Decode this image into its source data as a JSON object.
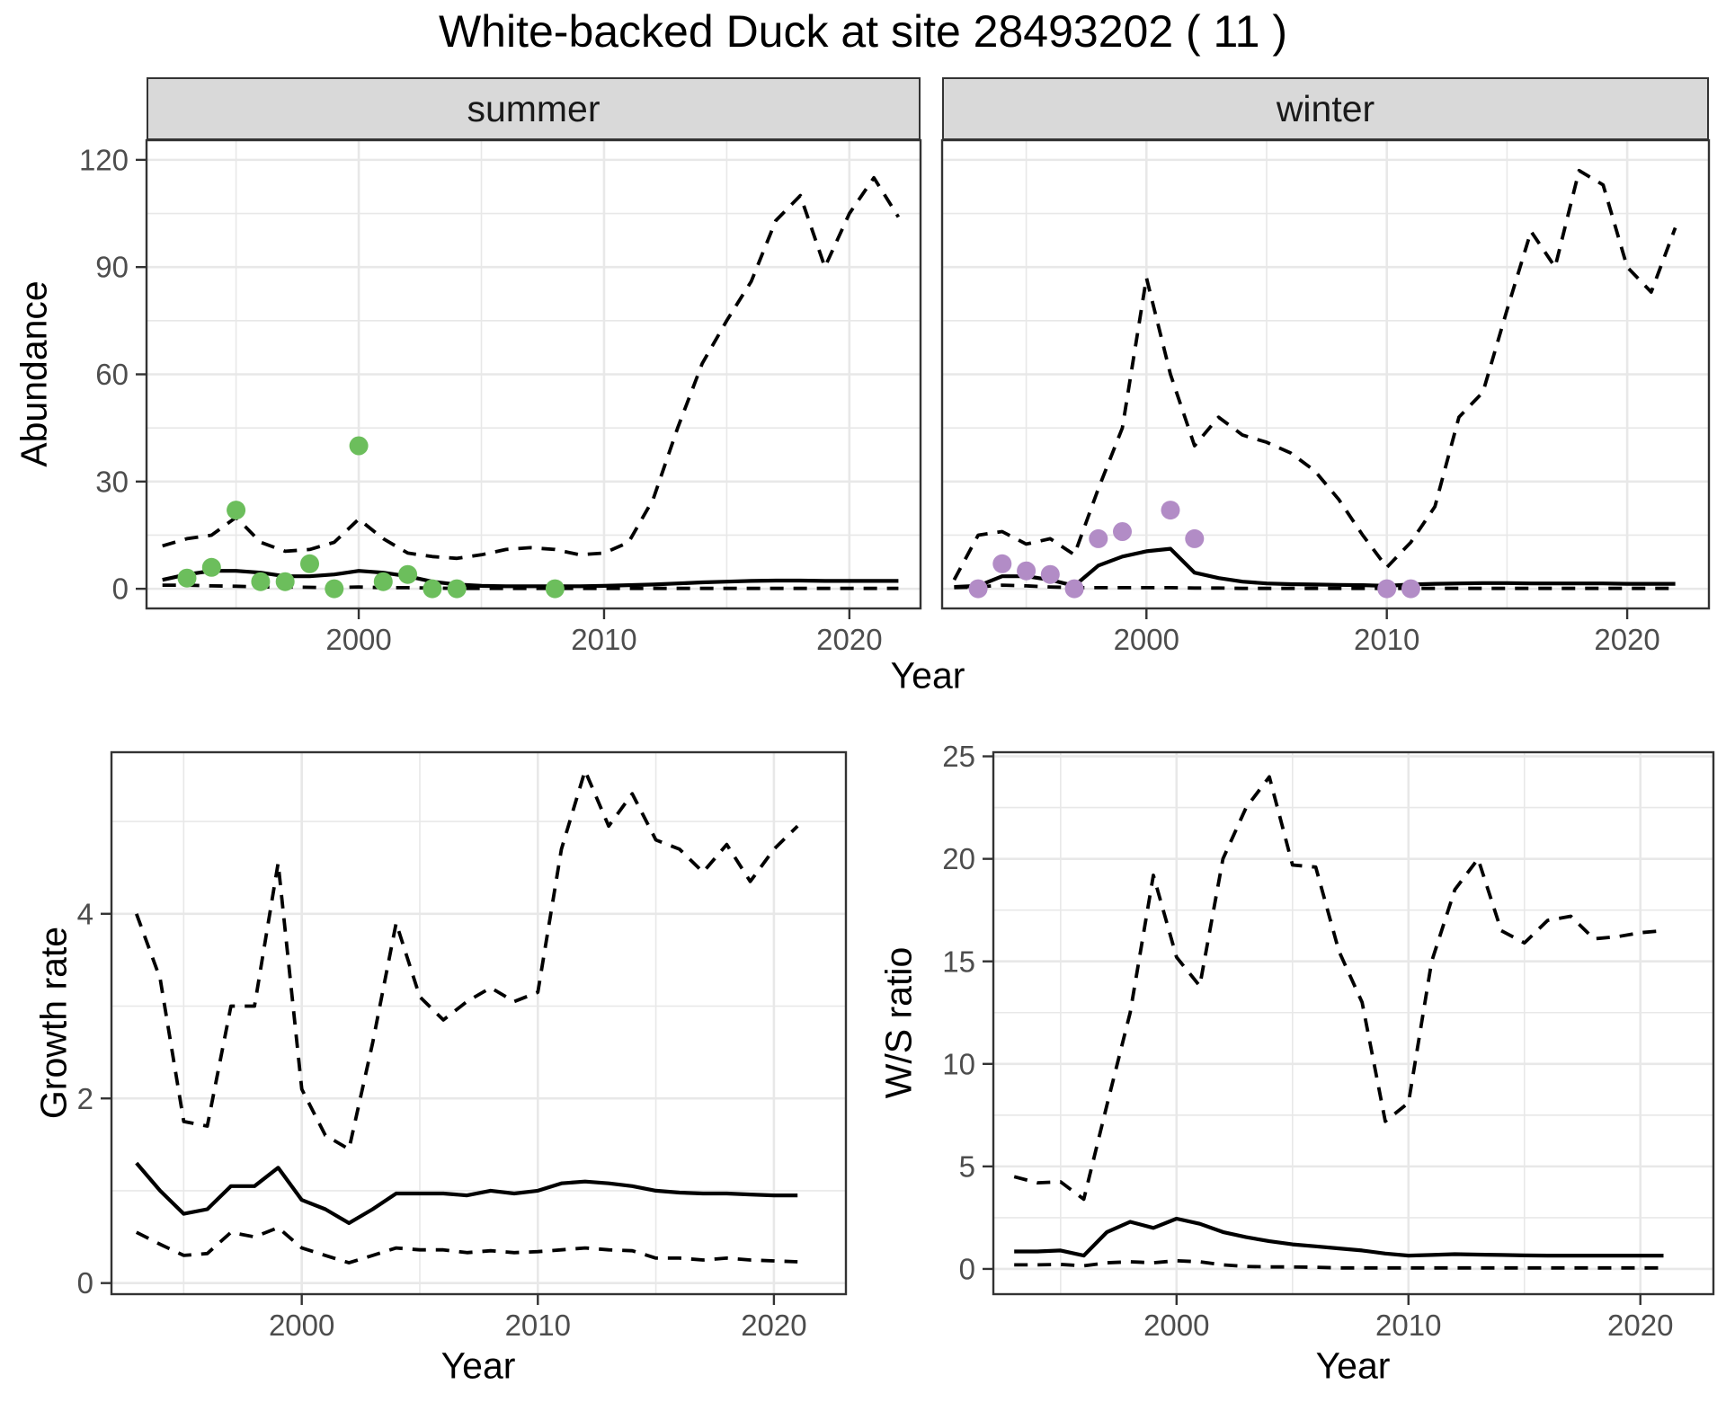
{
  "title": "White-backed Duck at site 28493202 ( 11 )",
  "facets": [
    {
      "label": "summer"
    },
    {
      "label": "winter"
    }
  ],
  "labels": {
    "abundance": "Abundance",
    "growth_rate": "Growth rate",
    "ws_ratio": "W/S ratio",
    "year": "Year"
  },
  "colors": {
    "point_summer": "#6cbe5c",
    "point_winter": "#b28cc6",
    "line": "#000000",
    "grid": "#e8e8e8",
    "panel_border": "#333333",
    "tick_text": "#4d4d4d",
    "strip_bg": "#d9d9d9"
  },
  "chart_data": [
    {
      "id": "abundance-summer",
      "type": "line",
      "facet": "summer",
      "title": "",
      "xlabel": "Year",
      "ylabel": "Abundance",
      "xlim": [
        1991.35,
        2022.9
      ],
      "ylim": [
        -5.5,
        125.5
      ],
      "x_major": [
        2000,
        2010,
        2020
      ],
      "x_minor": [
        1995,
        2005,
        2015
      ],
      "y_major": [
        0,
        30,
        60,
        90,
        120
      ],
      "y_minor": [
        15,
        45,
        75,
        105
      ],
      "grid": true,
      "axes": {
        "left": true,
        "bottom": true
      },
      "x": [
        1992,
        1993,
        1994,
        1995,
        1996,
        1997,
        1998,
        1999,
        2000,
        2001,
        2002,
        2003,
        2004,
        2005,
        2006,
        2007,
        2008,
        2009,
        2010,
        2011,
        2012,
        2013,
        2014,
        2015,
        2016,
        2017,
        2018,
        2019,
        2020,
        2021,
        2022
      ],
      "series": [
        {
          "name": "median",
          "style": "solid",
          "values": [
            2.5,
            4,
            5,
            5,
            4.5,
            3.5,
            3.5,
            4,
            5,
            4.5,
            3.5,
            2,
            1.2,
            0.8,
            0.7,
            0.7,
            0.7,
            0.7,
            0.8,
            1,
            1.2,
            1.5,
            1.8,
            2,
            2.2,
            2.3,
            2.3,
            2.2,
            2.2,
            2.2,
            2.2
          ]
        },
        {
          "name": "upper_ci",
          "style": "dashed",
          "values": [
            12,
            14,
            15,
            20,
            13,
            10.5,
            11,
            13,
            19.5,
            14,
            10,
            9,
            8.5,
            9.5,
            11,
            11.5,
            11,
            9.5,
            10,
            13,
            25,
            45,
            63,
            75,
            86,
            103,
            110,
            90,
            105,
            115,
            104
          ]
        },
        {
          "name": "lower_ci",
          "style": "dashed",
          "values": [
            1,
            1,
            0.8,
            0.7,
            0.5,
            0.5,
            0.4,
            0.3,
            0.5,
            0.3,
            0.3,
            0.2,
            0.1,
            0.1,
            0.1,
            0.1,
            0.1,
            0.1,
            0.1,
            0.1,
            0.1,
            0.1,
            0.1,
            0.1,
            0.1,
            0.1,
            0.1,
            0.1,
            0.1,
            0.1,
            0.1
          ]
        }
      ],
      "points": {
        "label": "observed-counts-summer",
        "x": [
          1993,
          1994,
          1995,
          1996,
          1997,
          1998,
          1999,
          2000,
          2001,
          2002,
          2003,
          2004,
          2008
        ],
        "y": [
          3,
          6,
          22,
          2,
          2,
          7,
          0,
          40,
          2,
          4,
          0,
          0,
          0
        ],
        "color": "#6cbe5c"
      }
    },
    {
      "id": "abundance-winter",
      "type": "line",
      "facet": "winter",
      "title": "",
      "xlabel": "Year",
      "ylabel": "Abundance",
      "xlim": [
        1991.5,
        2023.4
      ],
      "ylim": [
        -5.5,
        125.5
      ],
      "x_major": [
        2000,
        2010,
        2020
      ],
      "x_minor": [
        1995,
        2005,
        2015
      ],
      "y_major": [
        0,
        30,
        60,
        90,
        120
      ],
      "y_minor": [
        15,
        45,
        75,
        105
      ],
      "grid": true,
      "axes": {
        "left": false,
        "bottom": true
      },
      "x": [
        1992,
        1993,
        1994,
        1995,
        1996,
        1997,
        1998,
        1999,
        2000,
        2001,
        2002,
        2003,
        2004,
        2005,
        2006,
        2007,
        2008,
        2009,
        2010,
        2011,
        2012,
        2013,
        2014,
        2015,
        2016,
        2017,
        2018,
        2019,
        2020,
        2021,
        2022
      ],
      "series": [
        {
          "name": "median",
          "style": "solid",
          "values": [
            0.5,
            0.8,
            3.5,
            3.5,
            2.5,
            0.8,
            6.5,
            9,
            10.5,
            11.2,
            4.5,
            3,
            2,
            1.5,
            1.3,
            1.2,
            1.1,
            1,
            0.8,
            1.2,
            1.4,
            1.5,
            1.6,
            1.6,
            1.5,
            1.5,
            1.5,
            1.5,
            1.4,
            1.4,
            1.4
          ]
        },
        {
          "name": "upper_ci",
          "style": "dashed",
          "values": [
            2.5,
            15,
            16,
            12.5,
            14,
            9.5,
            28,
            45,
            87,
            60,
            40,
            48,
            43,
            41,
            38,
            33,
            25,
            15,
            6,
            13,
            23,
            48,
            55,
            78,
            100,
            90,
            117,
            113,
            90,
            83,
            101
          ]
        },
        {
          "name": "lower_ci",
          "style": "dashed",
          "values": [
            0.3,
            0.5,
            1,
            0.8,
            0.5,
            0.3,
            0.3,
            0.3,
            0.3,
            0.3,
            0.2,
            0.2,
            0.1,
            0.1,
            0.1,
            0.1,
            0.1,
            0.1,
            0.1,
            0.1,
            0.1,
            0.1,
            0.1,
            0.1,
            0.1,
            0.1,
            0.1,
            0.1,
            0.1,
            0.1,
            0.1
          ]
        }
      ],
      "points": {
        "label": "observed-counts-winter",
        "x": [
          1993,
          1994,
          1995,
          1996,
          1997,
          1998,
          1999,
          2001,
          2002,
          2010,
          2011
        ],
        "y": [
          0,
          7,
          5,
          4,
          0,
          14,
          16,
          22,
          14,
          0,
          0
        ],
        "color": "#b28cc6"
      }
    },
    {
      "id": "growth-rate",
      "type": "line",
      "facet": "",
      "title": "",
      "xlabel": "Year",
      "ylabel": "Growth rate",
      "xlim": [
        1991.94,
        2023.05
      ],
      "ylim": [
        -0.12,
        5.75
      ],
      "x_major": [
        2000,
        2010,
        2020
      ],
      "x_minor": [
        1995,
        2005,
        2015
      ],
      "y_major": [
        0,
        2,
        4
      ],
      "y_minor": [
        1,
        3,
        5
      ],
      "grid": true,
      "axes": {
        "left": true,
        "bottom": true
      },
      "x": [
        1993,
        1994,
        1995,
        1996,
        1997,
        1998,
        1999,
        2000,
        2001,
        2002,
        2003,
        2004,
        2005,
        2006,
        2007,
        2008,
        2009,
        2010,
        2011,
        2012,
        2013,
        2014,
        2015,
        2016,
        2017,
        2018,
        2019,
        2020,
        2021
      ],
      "series": [
        {
          "name": "median",
          "style": "solid",
          "values": [
            1.3,
            1.0,
            0.75,
            0.8,
            1.05,
            1.05,
            1.25,
            0.9,
            0.8,
            0.65,
            0.8,
            0.97,
            0.97,
            0.97,
            0.95,
            1.0,
            0.97,
            1.0,
            1.08,
            1.1,
            1.08,
            1.05,
            1.0,
            0.98,
            0.97,
            0.97,
            0.96,
            0.95,
            0.95
          ]
        },
        {
          "name": "upper_ci",
          "style": "dashed",
          "values": [
            4.0,
            3.3,
            1.75,
            1.7,
            3.0,
            3.0,
            4.55,
            2.1,
            1.6,
            1.45,
            2.6,
            3.9,
            3.1,
            2.85,
            3.05,
            3.2,
            3.05,
            3.15,
            4.7,
            5.55,
            4.95,
            5.3,
            4.8,
            4.7,
            4.45,
            4.75,
            4.35,
            4.7,
            4.95
          ]
        },
        {
          "name": "lower_ci",
          "style": "dashed",
          "values": [
            0.55,
            0.42,
            0.3,
            0.32,
            0.55,
            0.5,
            0.6,
            0.38,
            0.3,
            0.22,
            0.3,
            0.38,
            0.36,
            0.36,
            0.33,
            0.35,
            0.33,
            0.34,
            0.36,
            0.38,
            0.36,
            0.35,
            0.27,
            0.27,
            0.25,
            0.27,
            0.25,
            0.24,
            0.23
          ]
        }
      ],
      "points": null
    },
    {
      "id": "ws-ratio",
      "type": "line",
      "facet": "",
      "title": "",
      "xlabel": "Year",
      "ylabel": "W/S ratio",
      "xlim": [
        1992.1,
        2023.15
      ],
      "ylim": [
        -1.23,
        25.2
      ],
      "x_major": [
        2000,
        2010,
        2020
      ],
      "x_minor": [
        1995,
        2005,
        2015
      ],
      "y_major": [
        0,
        5,
        10,
        15,
        20,
        25
      ],
      "y_minor": [
        2.5,
        7.5,
        12.5,
        17.5,
        22.5
      ],
      "grid": true,
      "axes": {
        "left": true,
        "bottom": true
      },
      "x": [
        1993,
        1994,
        1995,
        1996,
        1997,
        1998,
        1999,
        2000,
        2001,
        2002,
        2003,
        2004,
        2005,
        2006,
        2007,
        2008,
        2009,
        2010,
        2011,
        2012,
        2013,
        2014,
        2015,
        2016,
        2017,
        2018,
        2019,
        2020,
        2021
      ],
      "series": [
        {
          "name": "median",
          "style": "solid",
          "values": [
            0.85,
            0.85,
            0.9,
            0.65,
            1.8,
            2.3,
            2.0,
            2.45,
            2.2,
            1.8,
            1.55,
            1.35,
            1.2,
            1.1,
            1.0,
            0.9,
            0.75,
            0.65,
            0.68,
            0.72,
            0.7,
            0.68,
            0.66,
            0.65,
            0.65,
            0.65,
            0.65,
            0.65,
            0.65
          ]
        },
        {
          "name": "upper_ci",
          "style": "dashed",
          "values": [
            4.5,
            4.2,
            4.25,
            3.4,
            8.0,
            12.5,
            19.2,
            15.2,
            13.8,
            20.0,
            22.5,
            24.0,
            19.7,
            19.6,
            15.5,
            13.0,
            7.2,
            8.1,
            15.0,
            18.5,
            20.0,
            16.5,
            15.9,
            17.0,
            17.2,
            16.1,
            16.2,
            16.4,
            16.5
          ]
        },
        {
          "name": "lower_ci",
          "style": "dashed",
          "values": [
            0.2,
            0.2,
            0.22,
            0.15,
            0.3,
            0.35,
            0.3,
            0.4,
            0.35,
            0.2,
            0.12,
            0.1,
            0.1,
            0.08,
            0.05,
            0.05,
            0.05,
            0.05,
            0.05,
            0.05,
            0.05,
            0.05,
            0.05,
            0.05,
            0.05,
            0.05,
            0.05,
            0.05,
            0.05
          ]
        }
      ],
      "points": null
    }
  ]
}
